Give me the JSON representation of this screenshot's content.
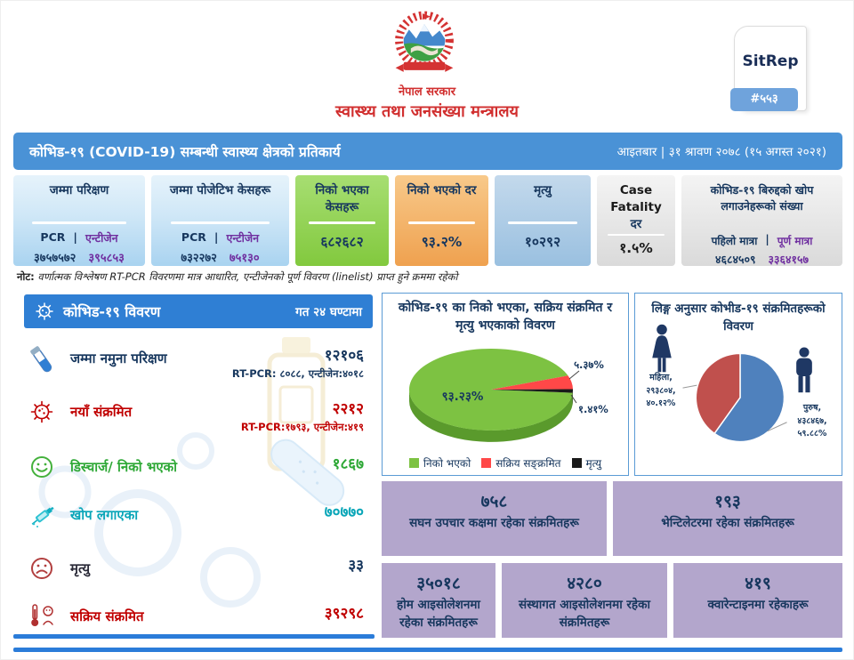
{
  "header": {
    "gov": "नेपाल सरकार",
    "ministry": "स्वास्थ्य तथा जनसंख्या मन्त्रालय",
    "sitrep": {
      "label": "SitRep",
      "number": "#५५३"
    }
  },
  "title_bar": {
    "title": "कोभिड-१९  (COVID-19) सम्बन्धी स्वास्थ्य क्षेत्रको प्रतिकार्य",
    "date": "आइतबार  |  ३१ श्रावण २०७८ (१५ अगस्त २०२१)"
  },
  "cards": {
    "tests": {
      "title": "जम्मा परिक्षण",
      "col1": "PCR",
      "sep": "|",
      "col2": "एन्टीजेन",
      "val1": "३७५७५७२",
      "val2": "३९५८५३"
    },
    "positive": {
      "title": "जम्मा पोजेटिभ केसहरू",
      "col1": "PCR",
      "sep": "|",
      "col2": "एन्टीजेन",
      "val1": "७३२२७२",
      "val2": "७५१३०"
    },
    "recovered": {
      "title": "निको भएका केसहरू",
      "value": "६८२६८२"
    },
    "recovery_rate": {
      "title": "निको भएको दर",
      "value": "९३.२%"
    },
    "deaths": {
      "title": "मृत्यु",
      "value": "१०२९२"
    },
    "cfr": {
      "title_en": "Case Fatality",
      "title_ne": "दर",
      "value": "१.५%"
    },
    "vaccine": {
      "title": "कोभिड-१९ बिरुद्दको खोप लगाउनेहरूको संख्या",
      "col1": "पहिलो मात्रा",
      "sep": "|",
      "col2": "पूर्ण मात्रा",
      "val1": "४६८४५०९",
      "val2": "३३६४१५७"
    }
  },
  "note": {
    "label": "नोट:",
    "text": "वर्णात्मक विश्लेषण RT-PCR विवरणमा मात्र आधारित, एन्टीजेनको पूर्ण विवरण (linelist) प्राप्त हुने क्रममा रहेको"
  },
  "details": {
    "title": "कोभिड-१९ विवरण",
    "period": "गत २४ घण्टामा",
    "rows": [
      {
        "icon": "test-tube-icon",
        "label": "जम्मा नमुना परिक्षण",
        "value": "१२१०६",
        "sub": "RT-PCR: ८०८८, एन्टीजेन:४०१८"
      },
      {
        "icon": "virus-icon",
        "label": "नयाँ संक्रमित",
        "value": "२२१२",
        "sub": "RT-PCR:१७९३, एन्टीजेन:४१९"
      },
      {
        "icon": "smiley-icon",
        "label": "डिस्चार्ज/ निको भएको",
        "value": "१८६७"
      },
      {
        "icon": "syringe-icon",
        "label": "खोप लगाएका",
        "value": "७०७७०"
      },
      {
        "icon": "sad-face-icon",
        "label": "मृत्यु",
        "value": "३३"
      },
      {
        "icon": "thermometer-icon",
        "label": "सक्रिय संक्रमित",
        "value": "३९२९८"
      }
    ]
  },
  "chart_data": [
    {
      "type": "pie",
      "style": "3d",
      "title": "कोभिड-१९ का निको भएका, सक्रिय संक्रमित र मृत्यु भएकाको विवरण",
      "labels": [
        "निको भएको",
        "सक्रिय सङ्क्रमित",
        "मृत्यु"
      ],
      "values": [
        93.23,
        5.37,
        1.41
      ],
      "value_labels": [
        "९३.२३%",
        "५.३७%",
        "१.४१%"
      ],
      "colors": [
        "#7dc242",
        "#ff4848",
        "#1a1a1a"
      ],
      "dark_colors": [
        "#5a9a2c",
        "#cc2e2e",
        "#000000"
      ],
      "legend_position": "bottom"
    },
    {
      "type": "pie",
      "title": "लिङ्ग अनुसार कोभीड-१९ संक्रमितहरूको विवरण",
      "labels": [
        "महिला",
        "पुरुष"
      ],
      "values": [
        40.12,
        59.88
      ],
      "counts": [
        "२९३८०४",
        "४३८४६७"
      ],
      "colors": [
        "#c0504d",
        "#4f81bd"
      ],
      "female_label_lines": [
        "महिला,",
        "२९३८०४,",
        "४०.१२%"
      ],
      "male_label_lines": [
        "पुरुष,",
        "४३८४६७,",
        "५९.८८%"
      ]
    }
  ],
  "stat_boxes": [
    {
      "value": "७५८",
      "label": "सघन उपचार कक्षमा रहेका संक्रमितहरू"
    },
    {
      "value": "१९३",
      "label": "भेन्टिलेटरमा रहेका संक्रमितहरू"
    },
    {
      "value": "३५०१८",
      "label": "होम आइसोलेशनमा रहेका संक्रमितहरू"
    },
    {
      "value": "४२८०",
      "label": "संस्थागत आइसोलेशनमा रहेका संक्रमितहरू"
    },
    {
      "value": "४१९",
      "label": "क्वारेन्टाइनमा रहेकाहरू"
    }
  ],
  "colors": {
    "accent_blue": "#4a92d6",
    "panel_blue": "#2f7fd4",
    "navy": "#17375e",
    "red": "#c00000",
    "purple": "#7030a0",
    "teal": "#0aa6b8",
    "green": "#2ea836",
    "box_purple": "#b3a6cc"
  }
}
